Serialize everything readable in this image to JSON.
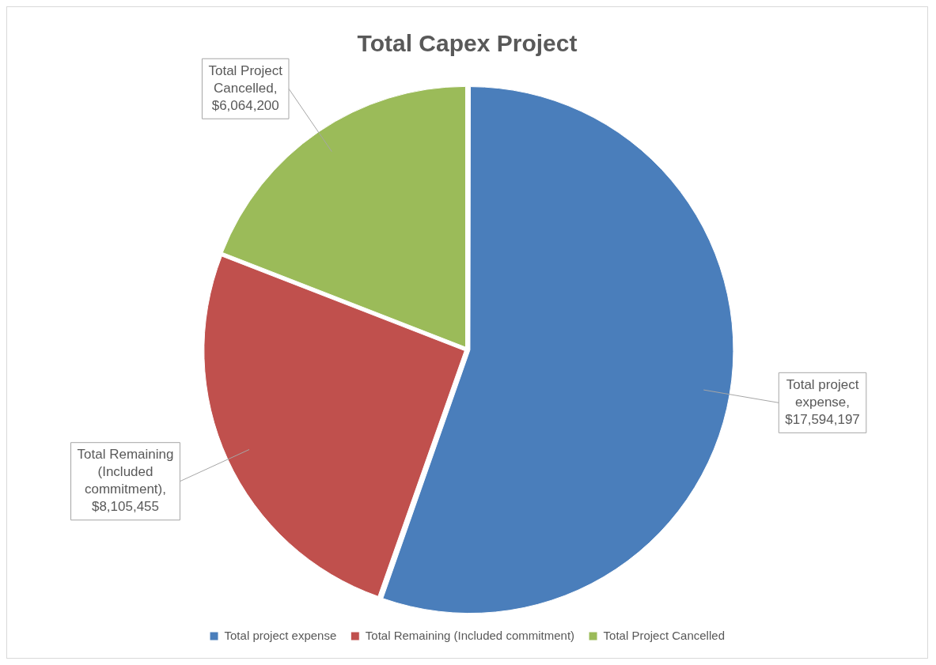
{
  "chart_data": {
    "type": "pie",
    "title": "Total Capex Project",
    "categories": [
      "Total project expense",
      "Total Remaining (Included commitment)",
      "Total Project Cancelled"
    ],
    "values": [
      17594197,
      8105455,
      6064200
    ],
    "value_labels": [
      "Total project expense, $17,594,197",
      "Total Remaining (Included commitment), $8,105,455",
      "Total Project Cancelled, $6,064,200"
    ],
    "colors": [
      "#4a7ebb",
      "#c0504d",
      "#9bbb59"
    ],
    "legend": "bottom"
  }
}
